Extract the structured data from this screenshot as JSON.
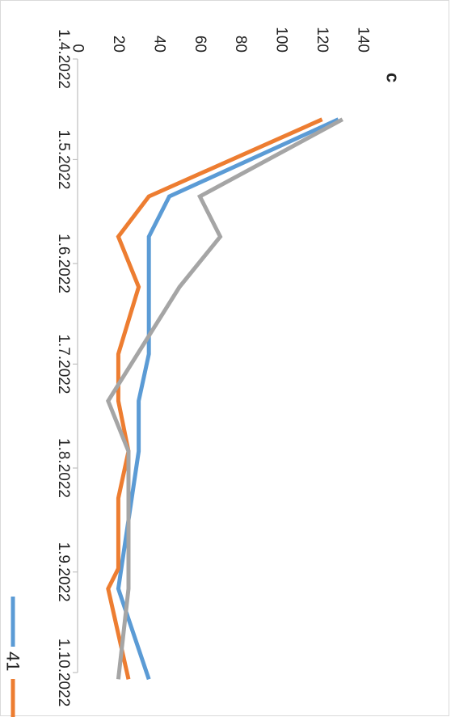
{
  "chart_data": {
    "type": "line",
    "panel_label": "c",
    "x": [
      "1.4.2022",
      "1.5.2022",
      "1.6.2022",
      "1.7.2022",
      "1.8.2022",
      "1.9.2022",
      "1.10.2022"
    ],
    "x_tick_dates": [
      "2022-04-01",
      "2022-05-01",
      "2022-06-01",
      "2022-07-01",
      "2022-08-01",
      "2022-09-01",
      "2022-10-01"
    ],
    "ylim": [
      0,
      140
    ],
    "yticks": [
      0,
      20,
      40,
      60,
      80,
      100,
      120,
      140
    ],
    "grid": false,
    "legend_position": "bottom",
    "series": [
      {
        "name": "41",
        "color": "#5b9bd5",
        "points": [
          {
            "x": "2022-04-19",
            "y": 128
          },
          {
            "x": "2022-05-12",
            "y": 45
          },
          {
            "x": "2022-05-24",
            "y": 35
          },
          {
            "x": "2022-06-28",
            "y": 35
          },
          {
            "x": "2022-07-12",
            "y": 30
          },
          {
            "x": "2022-07-27",
            "y": 30
          },
          {
            "x": "2022-09-06",
            "y": 20
          },
          {
            "x": "2022-10-03",
            "y": 35
          }
        ]
      },
      {
        "name": "",
        "color": "#ed7d31",
        "points": [
          {
            "x": "2022-04-19",
            "y": 120
          },
          {
            "x": "2022-05-12",
            "y": 35
          },
          {
            "x": "2022-05-24",
            "y": 20
          },
          {
            "x": "2022-06-08",
            "y": 30
          },
          {
            "x": "2022-06-28",
            "y": 20
          },
          {
            "x": "2022-07-12",
            "y": 20
          },
          {
            "x": "2022-07-27",
            "y": 25
          },
          {
            "x": "2022-08-10",
            "y": 20
          },
          {
            "x": "2022-08-31",
            "y": 20
          },
          {
            "x": "2022-09-06",
            "y": 15
          },
          {
            "x": "2022-10-03",
            "y": 25
          }
        ]
      },
      {
        "name": "",
        "color": "#a5a5a5",
        "points": [
          {
            "x": "2022-04-19",
            "y": 130
          },
          {
            "x": "2022-05-12",
            "y": 60
          },
          {
            "x": "2022-05-24",
            "y": 70
          },
          {
            "x": "2022-06-08",
            "y": 50
          },
          {
            "x": "2022-07-12",
            "y": 15
          },
          {
            "x": "2022-07-27",
            "y": 25
          },
          {
            "x": "2022-09-06",
            "y": 25
          },
          {
            "x": "2022-10-03",
            "y": 20
          }
        ]
      }
    ]
  }
}
